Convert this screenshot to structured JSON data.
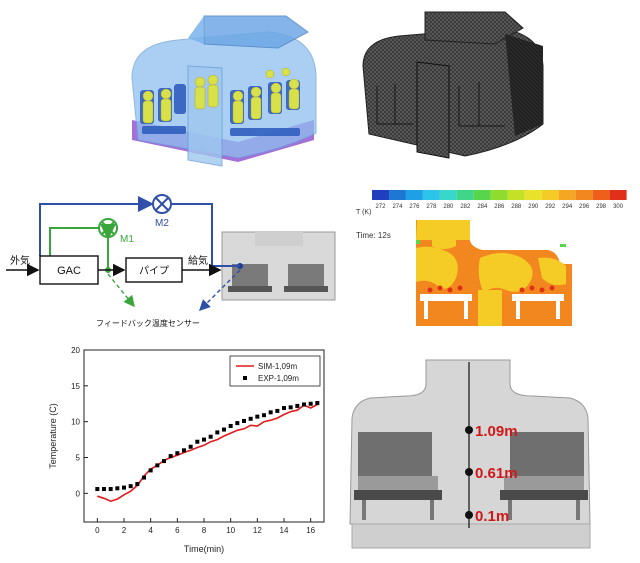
{
  "schematic": {
    "outside_air": "外気",
    "gac": "GAC",
    "pipe": "パイプ",
    "supply_air": "給気",
    "m1": "M1",
    "m2": "M2",
    "sensor": "フィードバック温度センサー"
  },
  "contour": {
    "unit_label": "T (K)",
    "ticks": [
      "272",
      "274",
      "276",
      "278",
      "280",
      "282",
      "284",
      "286",
      "288",
      "290",
      "292",
      "294",
      "296",
      "298",
      "300"
    ],
    "colors": [
      "#1f3fbf",
      "#1f77d4",
      "#1fa0e6",
      "#2cc4e8",
      "#39d7c9",
      "#3fd68a",
      "#58d64b",
      "#8fdc2f",
      "#c4e027",
      "#e9e22a",
      "#f5cc25",
      "#f5a623",
      "#f2871f",
      "#ee5f1c",
      "#e0301a"
    ],
    "time_label": "Time: 12s"
  },
  "cabin_probe": {
    "heights": [
      "1.09m",
      "0.61m",
      "0.1m"
    ],
    "label_color": "#d01818"
  },
  "chart_data": {
    "type": "line",
    "xlabel": "Time(min)",
    "ylabel": "Temperature (C)",
    "xlim": [
      -1,
      17
    ],
    "ylim": [
      -4,
      20
    ],
    "xticks": [
      "0",
      "2",
      "4",
      "6",
      "8",
      "10",
      "12",
      "14",
      "16"
    ],
    "yticks": [
      "0",
      "5",
      "10",
      "15",
      "20"
    ],
    "legend_position": "top-right",
    "series": [
      {
        "name": "SIM-1,09m",
        "style": "line",
        "color": "#e31a1c",
        "x": [
          0,
          0.5,
          1.0,
          1.5,
          2.0,
          2.5,
          3.0,
          3.5,
          4.0,
          4.5,
          5.0,
          5.5,
          6.0,
          6.5,
          7.0,
          7.5,
          8.0,
          8.5,
          9.0,
          9.5,
          10.0,
          10.5,
          11.0,
          11.5,
          12.0,
          12.5,
          13.0,
          13.5,
          14.0,
          14.5,
          15.0,
          15.5,
          16.0,
          16.5
        ],
        "y": [
          -0.4,
          -0.7,
          -1.1,
          -0.8,
          -0.2,
          0.3,
          1.1,
          2.4,
          3.4,
          3.9,
          4.6,
          5.0,
          5.3,
          5.7,
          6.0,
          6.4,
          6.7,
          7.2,
          7.5,
          8.0,
          8.4,
          8.8,
          9.0,
          9.5,
          9.4,
          10.0,
          10.2,
          10.5,
          11.0,
          11.4,
          11.6,
          12.3,
          11.9,
          12.4
        ]
      },
      {
        "name": "EXP-1,09m",
        "style": "markers",
        "color": "#000000",
        "x": [
          0,
          0.5,
          1.0,
          1.5,
          2.0,
          2.5,
          3.0,
          3.5,
          4.0,
          4.5,
          5.0,
          5.5,
          6.0,
          6.5,
          7.0,
          7.5,
          8.0,
          8.5,
          9.0,
          9.5,
          10.0,
          10.5,
          11.0,
          11.5,
          12.0,
          12.5,
          13.0,
          13.5,
          14.0,
          14.5,
          15.0,
          15.5,
          16.0,
          16.5
        ],
        "y": [
          0.6,
          0.6,
          0.6,
          0.7,
          0.8,
          1.0,
          1.3,
          2.2,
          3.2,
          3.9,
          4.5,
          5.2,
          5.6,
          6.0,
          6.5,
          7.2,
          7.5,
          7.9,
          8.5,
          8.9,
          9.4,
          9.8,
          10.1,
          10.4,
          10.7,
          10.9,
          11.3,
          11.5,
          11.9,
          12.0,
          12.2,
          12.4,
          12.5,
          12.6
        ]
      }
    ]
  }
}
